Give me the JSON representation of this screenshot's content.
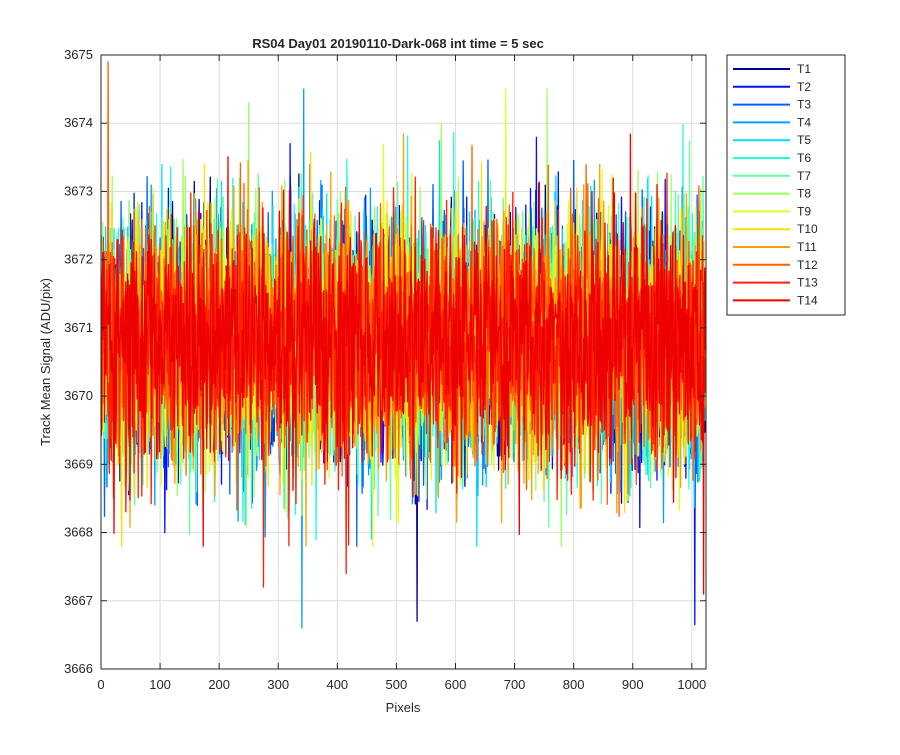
{
  "chart_data": {
    "type": "line",
    "title": "RS04 Day01 20190110-Dark-068 int time = 5 sec",
    "xlabel": "Pixels",
    "ylabel": "Track Mean Signal (ADU/pix)",
    "xlim": [
      0,
      1024
    ],
    "ylim": [
      3666,
      3675
    ],
    "xticks": [
      "0",
      "100",
      "200",
      "300",
      "400",
      "500",
      "600",
      "700",
      "800",
      "900",
      "1000"
    ],
    "yticks": [
      "3666",
      "3667",
      "3668",
      "3669",
      "3670",
      "3671",
      "3672",
      "3673",
      "3674",
      "3675"
    ],
    "grid": true,
    "legend_position": "outside-right",
    "n_points_per_series": 1024,
    "mean_signal": 3670.8,
    "noise_std": 0.9,
    "series": [
      {
        "name": "T1",
        "color": "#00008f"
      },
      {
        "name": "T2",
        "color": "#0010ff"
      },
      {
        "name": "T3",
        "color": "#005fff"
      },
      {
        "name": "T4",
        "color": "#00a0ff"
      },
      {
        "name": "T5",
        "color": "#00dfff"
      },
      {
        "name": "T6",
        "color": "#20ffdf"
      },
      {
        "name": "T7",
        "color": "#60ffa0"
      },
      {
        "name": "T8",
        "color": "#9fff60"
      },
      {
        "name": "T9",
        "color": "#dfff20"
      },
      {
        "name": "T10",
        "color": "#ffe000"
      },
      {
        "name": "T11",
        "color": "#ffa000"
      },
      {
        "name": "T12",
        "color": "#ff6000"
      },
      {
        "name": "T13",
        "color": "#ff2000"
      },
      {
        "name": "T14",
        "color": "#ee0000"
      }
    ],
    "notable_points": [
      {
        "series": "T12",
        "x": 12,
        "y": 3674.9
      },
      {
        "series": "T4",
        "x": 340,
        "y": 3666.6
      },
      {
        "series": "T4",
        "x": 343,
        "y": 3674.5
      },
      {
        "series": "T1",
        "x": 535,
        "y": 3666.7
      },
      {
        "series": "T2",
        "x": 1005,
        "y": 3666.65
      },
      {
        "series": "T13",
        "x": 275,
        "y": 3667.2
      },
      {
        "series": "T13",
        "x": 415,
        "y": 3667.4
      },
      {
        "series": "T8",
        "x": 250,
        "y": 3674.3
      },
      {
        "series": "T9",
        "x": 685,
        "y": 3674.5
      },
      {
        "series": "T8",
        "x": 755,
        "y": 3674.5
      },
      {
        "series": "T14",
        "x": 1020,
        "y": 3667.1
      }
    ]
  }
}
